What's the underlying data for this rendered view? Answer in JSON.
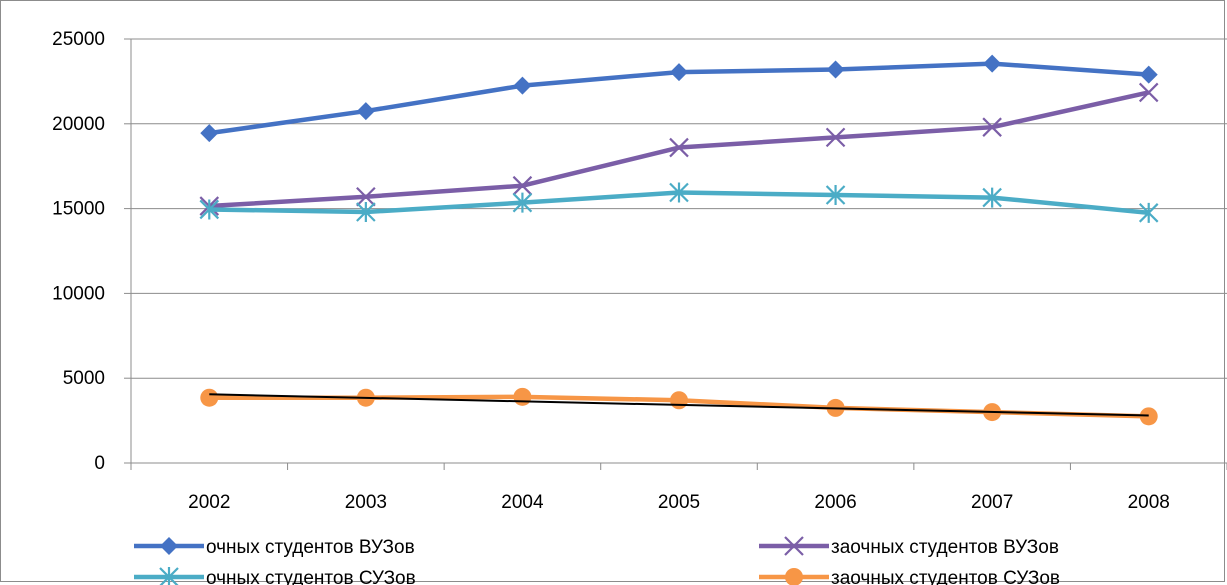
{
  "chart_data": {
    "type": "line",
    "title": "",
    "xlabel": "",
    "ylabel": "",
    "categories": [
      "2002",
      "2003",
      "2004",
      "2005",
      "2006",
      "2007",
      "2008"
    ],
    "ylim": [
      0,
      25000
    ],
    "yticks": [
      0,
      5000,
      10000,
      15000,
      20000,
      25000
    ],
    "grid": "horizontal",
    "legend_position": "bottom",
    "series": [
      {
        "name": "очных студентов ВУЗов",
        "color": "#4472c4",
        "marker": "diamond",
        "values": [
          19450,
          20750,
          22250,
          23050,
          23200,
          23550,
          22900
        ]
      },
      {
        "name": "заочных студентов ВУЗов",
        "color": "#7b5ea7",
        "marker": "x",
        "values": [
          15150,
          15700,
          16350,
          18600,
          19200,
          19800,
          21850
        ]
      },
      {
        "name": "очных студентов СУЗов",
        "color": "#4bacc6",
        "marker": "asterisk",
        "values": [
          14950,
          14800,
          15350,
          15950,
          15800,
          15650,
          14750
        ]
      },
      {
        "name": "заочных студентов СУЗов",
        "color": "#f79646",
        "marker": "circle",
        "values": [
          3850,
          3850,
          3900,
          3700,
          3250,
          3000,
          2750
        ]
      }
    ],
    "trendline": {
      "series": "заочных студентов СУЗов",
      "color": "#000000",
      "values": [
        4050,
        2800
      ]
    }
  }
}
